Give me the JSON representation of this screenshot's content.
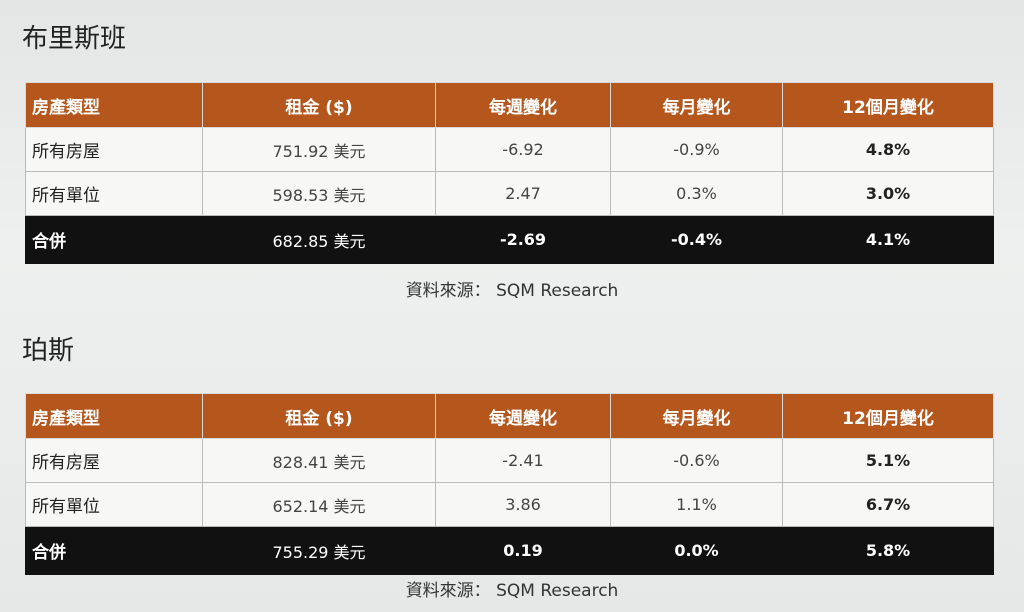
{
  "sections": [
    {
      "title": "布里斯班",
      "table": {
        "header": [
          "房產類型",
          "租金 ($)",
          "每週變化",
          "每月變化",
          "12個月變化"
        ],
        "rows": [
          [
            "所有房屋",
            "751.92 美元",
            "-6.92",
            "-0.9%",
            "4.8%"
          ],
          [
            "所有單位",
            "598.53 美元",
            "2.47",
            "0.3%",
            "3.0%"
          ],
          [
            "合併",
            "682.85 美元",
            "-2.69",
            "-0.4%",
            "4.1%"
          ]
        ]
      },
      "source": "資料來源： SQM Research"
    },
    {
      "title": "珀斯",
      "table": {
        "header": [
          "房產類型",
          "租金 ($)",
          "每週變化",
          "每月變化",
          "12個月變化"
        ],
        "rows": [
          [
            "所有房屋",
            "828.41 美元",
            "-2.41",
            "-0.6%",
            "5.1%"
          ],
          [
            "所有單位",
            "652.14 美元",
            "3.86",
            "1.1%",
            "6.7%"
          ],
          [
            "合併",
            "755.29 美元",
            "0.19",
            "0.0%",
            "5.8%"
          ]
        ]
      },
      "source": "資料來源： SQM Research"
    }
  ]
}
